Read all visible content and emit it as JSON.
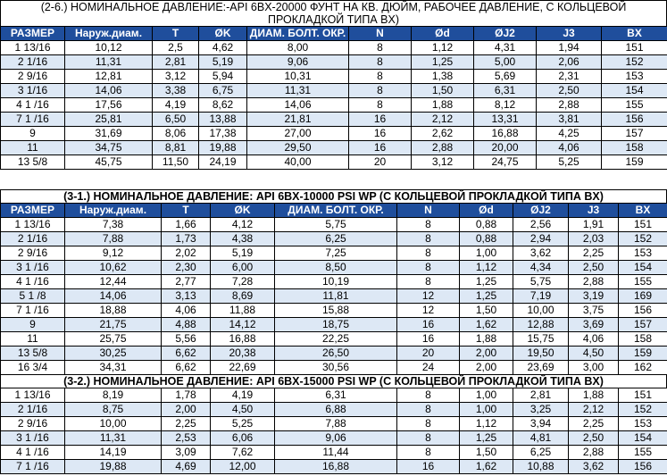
{
  "section1": {
    "title_line1": "(2-6.) НОМИНАЛЬНОЕ ДАВЛЕНИЕ:-API 6BX-20000 ФУНТ НА КВ. ДЮЙМ, РАБОЧЕЕ ДАВЛЕНИЕ, С КОЛЬЦЕВОЙ",
    "title_line2": "ПРОКЛАДКОЙ ТИПА BX)",
    "headers": [
      "РАЗМЕР",
      "Наруж.диам.",
      "T",
      "ØK",
      "ДИАМ. БОЛТ. ОКР.",
      "N",
      "Ød",
      "ØJ2",
      "J3",
      "BX"
    ],
    "rows": [
      [
        "1 13/16",
        "10,12",
        "2,5",
        "4,62",
        "8,00",
        "8",
        "1,12",
        "4,31",
        "1,94",
        "151"
      ],
      [
        "2 1/16",
        "11,31",
        "2,81",
        "5,19",
        "9,06",
        "8",
        "1,25",
        "5,00",
        "2,06",
        "152"
      ],
      [
        "2 9/16",
        "12,81",
        "3,12",
        "5,94",
        "10,31",
        "8",
        "1,38",
        "5,69",
        "2,31",
        "153"
      ],
      [
        "3 1/16",
        "14,06",
        "3,38",
        "6,75",
        "11,31",
        "8",
        "1,50",
        "6,31",
        "2,50",
        "154"
      ],
      [
        "4 1 /16",
        "17,56",
        "4,19",
        "8,62",
        "14,06",
        "8",
        "1,88",
        "8,12",
        "2,88",
        "155"
      ],
      [
        "7 1 /16",
        "25,81",
        "6,50",
        "13,88",
        "21,81",
        "16",
        "2,12",
        "13,31",
        "3,81",
        "156"
      ],
      [
        "9",
        "31,69",
        "8,06",
        "17,38",
        "27,00",
        "16",
        "2,62",
        "16,88",
        "4,25",
        "157"
      ],
      [
        "11",
        "34,75",
        "8,81",
        "19,88",
        "29,50",
        "16",
        "2,88",
        "20,00",
        "4,06",
        "158"
      ],
      [
        "13 5/8",
        "45,75",
        "11,50",
        "24,19",
        "40,00",
        "20",
        "3,12",
        "24,75",
        "5,25",
        "159"
      ]
    ]
  },
  "section2": {
    "title": "(3-1.) НОМИНАЛЬНОЕ ДАВЛЕНИЕ: API 6BX-10000 PSI WP (С КОЛЬЦЕВОЙ ПРОКЛАДКОЙ ТИПА BX)",
    "headers": [
      "РАЗМЕР",
      "Наруж.диам.",
      "T",
      "ØK",
      "ДИАМ. БОЛТ. ОКР.",
      "N",
      "Ød",
      "ØJ2",
      "J3",
      "BX"
    ],
    "rows": [
      [
        "1 13/16",
        "7,38",
        "1,66",
        "4,12",
        "5,75",
        "8",
        "0,88",
        "2,56",
        "1,91",
        "151"
      ],
      [
        "2 1/16",
        "7,88",
        "1,73",
        "4,38",
        "6,25",
        "8",
        "0,88",
        "2,94",
        "2,03",
        "152"
      ],
      [
        "2 9/16",
        "9,12",
        "2,02",
        "5,19",
        "7,25",
        "8",
        "1,00",
        "3,62",
        "2,25",
        "153"
      ],
      [
        "3 1 /16",
        "10,62",
        "2,30",
        "6,00",
        "8,50",
        "8",
        "1,12",
        "4,34",
        "2,50",
        "154"
      ],
      [
        "4 1 /16",
        "12,44",
        "2,77",
        "7,28",
        "10,19",
        "8",
        "1,25",
        "5,75",
        "2,88",
        "155"
      ],
      [
        "5 1 /8",
        "14,06",
        "3,13",
        "8,69",
        "11,81",
        "12",
        "1,25",
        "7,19",
        "3,19",
        "169"
      ],
      [
        "7 1 /16",
        "18,88",
        "4,06",
        "11,88",
        "15,88",
        "12",
        "1,50",
        "10,00",
        "3,75",
        "156"
      ],
      [
        "9",
        "21,75",
        "4,88",
        "14,12",
        "18,75",
        "16",
        "1,62",
        "12,88",
        "3,69",
        "157"
      ],
      [
        "11",
        "25,75",
        "5,56",
        "16,88",
        "22,25",
        "16",
        "1,88",
        "15,75",
        "4,06",
        "158"
      ],
      [
        "13 5/8",
        "30,25",
        "6,62",
        "20,38",
        "26,50",
        "20",
        "2,00",
        "19,50",
        "4,50",
        "159"
      ],
      [
        "16 3/4",
        "34,31",
        "6,62",
        "22,69",
        "30,56",
        "24",
        "2,00",
        "23,69",
        "3,00",
        "162"
      ]
    ]
  },
  "section3": {
    "title": "(3-2.) НОМИНАЛЬНОЕ ДАВЛЕНИЕ: API 6BX-15000 PSI WP (С КОЛЬЦЕВОЙ ПРОКЛАДКОЙ ТИПА BX)",
    "rows": [
      [
        "1 13/16",
        "8,19",
        "1,78",
        "4,19",
        "6,31",
        "8",
        "1,00",
        "2,81",
        "1,88",
        "151"
      ],
      [
        "2 1/16",
        "8,75",
        "2,00",
        "4,50",
        "6,88",
        "8",
        "1,00",
        "3,25",
        "2,12",
        "152"
      ],
      [
        "2 9/16",
        "10,00",
        "2,25",
        "5,25",
        "7,88",
        "8",
        "1,12",
        "3,94",
        "2,25",
        "153"
      ],
      [
        "3 1 /16",
        "11,31",
        "2,53",
        "6,06",
        "9,06",
        "8",
        "1,25",
        "4,81",
        "2,50",
        "154"
      ],
      [
        "4 1 /16",
        "14,19",
        "3,09",
        "7,62",
        "11,44",
        "8",
        "1,50",
        "6,25",
        "2,88",
        "155"
      ],
      [
        "7 1 /16",
        "19,88",
        "4,69",
        "12,00",
        "16,88",
        "16",
        "1,62",
        "10,88",
        "3,62",
        "156"
      ]
    ]
  },
  "colors": {
    "header_bg": "#1f4e9c",
    "alt_row_bg": "#dde8f5"
  }
}
